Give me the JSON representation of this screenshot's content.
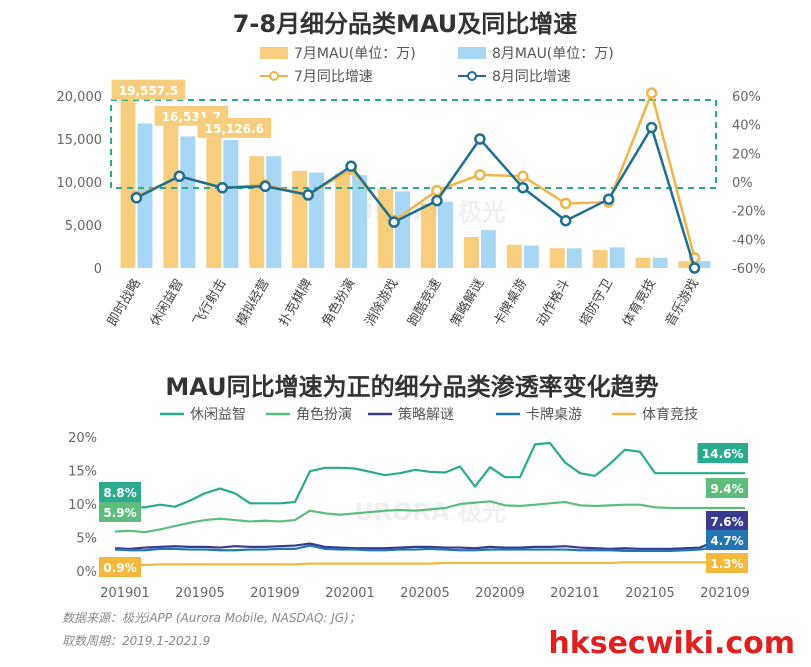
{
  "chart_data": [
    {
      "type": "bar",
      "title": "7-8月细分品类MAU及同比增速",
      "categories": [
        "即时战略",
        "休闲益智",
        "飞行射击",
        "模拟经营",
        "扑克棋牌",
        "角色扮演",
        "消除游戏",
        "跑酷竞速",
        "策略解谜",
        "卡牌桌游",
        "动作格斗",
        "塔防守卫",
        "体育竞技",
        "音乐游戏"
      ],
      "series": [
        {
          "name": "7月MAU(单位：万)",
          "kind": "bar",
          "color": "#f7cd7e",
          "values": [
            19557.5,
            16531.7,
            15126.6,
            13000,
            11300,
            11000,
            9200,
            7500,
            3600,
            2700,
            2300,
            2100,
            1200,
            800
          ]
        },
        {
          "name": "8月MAU(单位：万)",
          "kind": "bar",
          "color": "#a8d7f5",
          "values": [
            16800,
            15300,
            14900,
            13000,
            11100,
            10800,
            8900,
            7700,
            4400,
            2600,
            2300,
            2400,
            1200,
            800
          ]
        },
        {
          "name": "7月同比增速",
          "kind": "line",
          "axis": "right",
          "color": "#f0b54a",
          "values": [
            -10,
            4,
            -4,
            -2,
            -9,
            9,
            -27,
            -6,
            5,
            4,
            -15,
            -14,
            62,
            -53
          ]
        },
        {
          "name": "8月同比增速",
          "kind": "line",
          "axis": "right",
          "color": "#1f6e93",
          "values": [
            -11,
            4,
            -4,
            -3,
            -9,
            11,
            -28,
            -13,
            30,
            -4,
            -27,
            -12,
            38,
            -60
          ]
        }
      ],
      "yticks_left": [
        "0",
        "5,000",
        "10,000",
        "15,000",
        "20,000"
      ],
      "ylim_left": [
        0,
        20000
      ],
      "yticks_right": [
        "-60%",
        "-40%",
        "-20%",
        "0%",
        "20%",
        "40%",
        "60%"
      ],
      "ylim_right": [
        -60,
        60
      ],
      "data_labels": [
        {
          "index": 0,
          "series": 0,
          "text": "19,557.5"
        },
        {
          "index": 1,
          "series": 0,
          "text": "16,531.7"
        },
        {
          "index": 2,
          "series": 0,
          "text": "15,126.6"
        }
      ],
      "label_color": "#f7cd7e"
    },
    {
      "type": "line",
      "title": "MAU同比增速为正的细分品类渗透率变化趋势",
      "xticks": [
        "201901",
        "201905",
        "201909",
        "202001",
        "202005",
        "202009",
        "202101",
        "202105",
        "202109"
      ],
      "yticks": [
        "0%",
        "5%",
        "10%",
        "15%",
        "20%"
      ],
      "ylim": [
        0,
        20
      ],
      "series": [
        {
          "name": "休闲益智",
          "color": "#2bab8e",
          "values": [
            8.8,
            9.6,
            9.5,
            9.9,
            9.6,
            10.5,
            11.6,
            12.3,
            11.6,
            10.1,
            10.1,
            10.1,
            10.3,
            14.9,
            15.4,
            15.4,
            15.3,
            14.8,
            14.3,
            14.6,
            15.1,
            14.8,
            14.7,
            15.6,
            12.6,
            15.5,
            14.0,
            14.0,
            18.9,
            19.1,
            16.2,
            14.6,
            14.2,
            16.0,
            18.1,
            17.8,
            14.6,
            14.6,
            14.6,
            14.6,
            14.6,
            14.6,
            14.6
          ],
          "start": "8.8%",
          "end": "14.6%"
        },
        {
          "name": "角色扮演",
          "color": "#5ebd7c",
          "values": [
            5.9,
            6.0,
            5.8,
            6.2,
            6.7,
            7.2,
            7.6,
            7.8,
            7.6,
            7.4,
            7.5,
            7.4,
            7.6,
            9.0,
            8.6,
            8.4,
            8.6,
            8.8,
            9.0,
            9.1,
            9.0,
            9.2,
            9.4,
            10.0,
            10.2,
            10.4,
            9.8,
            9.7,
            9.9,
            10.1,
            10.3,
            9.8,
            9.7,
            9.8,
            9.9,
            9.9,
            9.5,
            9.4,
            9.4,
            9.4,
            9.4,
            9.4,
            9.4
          ],
          "start": "5.9%",
          "end": "9.4%"
        },
        {
          "name": "策略解谜",
          "color": "#3a3a8f",
          "values": [
            3.4,
            3.3,
            3.5,
            3.6,
            3.7,
            3.6,
            3.6,
            3.5,
            3.7,
            3.6,
            3.6,
            3.7,
            3.8,
            4.1,
            3.6,
            3.5,
            3.4,
            3.4,
            3.4,
            3.5,
            3.6,
            3.6,
            3.5,
            3.5,
            3.4,
            3.6,
            3.5,
            3.5,
            3.6,
            3.6,
            3.7,
            3.5,
            3.4,
            3.3,
            3.4,
            3.3,
            3.3,
            3.3,
            3.4,
            3.5,
            4.4,
            6.2,
            7.6
          ],
          "start": "",
          "end": "7.6%"
        },
        {
          "name": "卡牌桌游",
          "color": "#2276b5",
          "values": [
            3.2,
            3.1,
            3.1,
            3.3,
            3.3,
            3.2,
            3.2,
            3.1,
            3.1,
            3.2,
            3.2,
            3.3,
            3.3,
            3.8,
            3.3,
            3.2,
            3.2,
            3.1,
            3.1,
            3.2,
            3.2,
            3.3,
            3.2,
            3.1,
            3.1,
            3.2,
            3.2,
            3.2,
            3.2,
            3.2,
            3.2,
            3.1,
            3.1,
            3.1,
            3.0,
            3.0,
            3.0,
            3.0,
            3.1,
            3.2,
            3.6,
            4.3,
            4.7
          ],
          "start": "",
          "end": "4.7%"
        },
        {
          "name": "体育竞技",
          "color": "#f4b83c",
          "values": [
            0.9,
            0.9,
            0.9,
            1.0,
            1.0,
            1.0,
            1.0,
            1.0,
            1.0,
            1.0,
            1.0,
            1.0,
            1.0,
            1.1,
            1.1,
            1.1,
            1.1,
            1.1,
            1.1,
            1.1,
            1.1,
            1.1,
            1.2,
            1.2,
            1.2,
            1.2,
            1.2,
            1.2,
            1.2,
            1.2,
            1.2,
            1.2,
            1.2,
            1.2,
            1.3,
            1.3,
            1.3,
            1.3,
            1.3,
            1.3,
            1.3,
            1.3,
            1.3
          ],
          "start": "0.9%",
          "end": "1.3%"
        }
      ]
    }
  ],
  "watermark": "URORA 极光",
  "footer": {
    "source": "数据来源：极光iAPP (Aurora Mobile, NASDAQ: JG)；",
    "period": "取数周期：2019.1-2021.9"
  },
  "site_mark": "hksecwiki.com"
}
